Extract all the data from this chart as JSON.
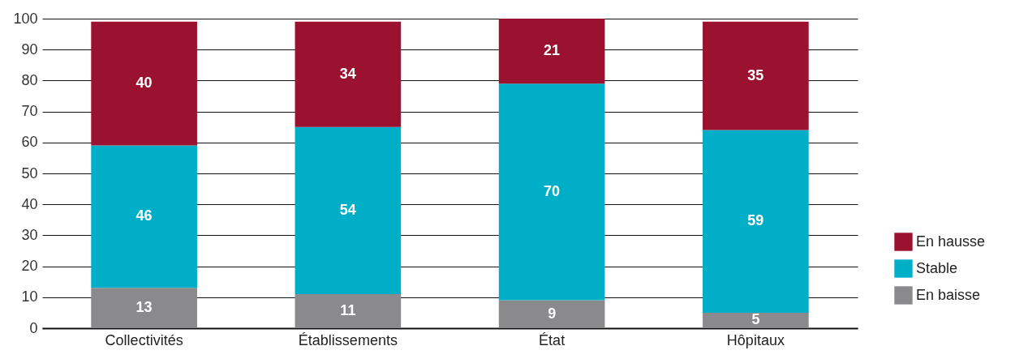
{
  "chart_data": {
    "type": "bar",
    "stacked": true,
    "categories": [
      "Collectivités",
      "Établissements",
      "État",
      "Hôpitaux"
    ],
    "series": [
      {
        "name": "En baisse",
        "color": "#8a8a8c",
        "values": [
          13,
          11,
          9,
          5
        ]
      },
      {
        "name": "Stable",
        "color": "#00aec7",
        "values": [
          46,
          54,
          70,
          59
        ]
      },
      {
        "name": "En hausse",
        "color": "#9b1230",
        "values": [
          40,
          34,
          21,
          35
        ]
      }
    ],
    "ylim": [
      0,
      100
    ],
    "yticks": [
      0,
      10,
      20,
      30,
      40,
      50,
      60,
      70,
      80,
      90,
      100
    ],
    "grid": "y",
    "legend": "bottom right",
    "data_labels": true
  }
}
